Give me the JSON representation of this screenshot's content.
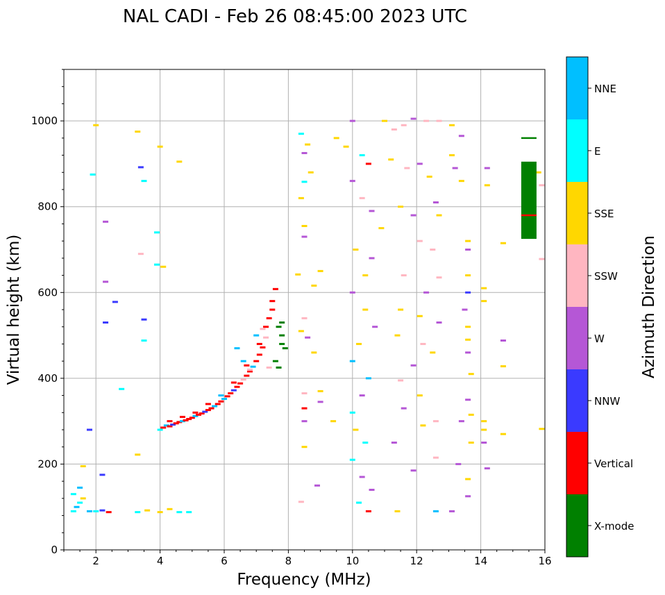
{
  "chart_data": {
    "type": "scatter",
    "title": "NAL CADI - Feb 26 08:45:00 2023 UTC",
    "xlabel": "Frequency (MHz)",
    "ylabel": "Virtual height (km)",
    "xlim": [
      1,
      16
    ],
    "ylim": [
      0,
      1120
    ],
    "xticks": [
      2,
      4,
      6,
      8,
      10,
      12,
      14,
      16
    ],
    "yticks": [
      0,
      200,
      400,
      600,
      800,
      1000
    ],
    "grid": true,
    "colorbar": {
      "label": "Azimuth Direction",
      "position": "right",
      "categories": [
        {
          "name": "X-mode",
          "color": "#008000"
        },
        {
          "name": "Vertical",
          "color": "#ff0000"
        },
        {
          "name": "NNW",
          "color": "#3a3aff"
        },
        {
          "name": "W",
          "color": "#b557d6"
        },
        {
          "name": "SSW",
          "color": "#ffb6c1"
        },
        {
          "name": "SSE",
          "color": "#ffd700"
        },
        {
          "name": "E",
          "color": "#00ffff"
        },
        {
          "name": "NNE",
          "color": "#00bfff"
        }
      ]
    },
    "notes": "Representative echo points (frequency MHz, virtual height km, direction). Main F-layer trace rises from ~290 km at 4 MHz to ~600 km near 7.4 MHz.",
    "points": [
      [
        4.0,
        280,
        "E"
      ],
      [
        4.1,
        285,
        "Vertical"
      ],
      [
        4.2,
        290,
        "NNE"
      ],
      [
        4.3,
        288,
        "Vertical"
      ],
      [
        4.4,
        292,
        "NNW"
      ],
      [
        4.5,
        295,
        "Vertical"
      ],
      [
        4.6,
        298,
        "Vertical"
      ],
      [
        4.7,
        300,
        "NNE"
      ],
      [
        4.8,
        302,
        "Vertical"
      ],
      [
        4.9,
        305,
        "Vertical"
      ],
      [
        5.0,
        308,
        "Vertical"
      ],
      [
        5.1,
        312,
        "NNE"
      ],
      [
        5.2,
        315,
        "Vertical"
      ],
      [
        5.3,
        318,
        "Vertical"
      ],
      [
        5.4,
        322,
        "NNW"
      ],
      [
        5.5,
        326,
        "Vertical"
      ],
      [
        5.6,
        330,
        "Vertical"
      ],
      [
        5.7,
        335,
        "NNE"
      ],
      [
        5.8,
        340,
        "Vertical"
      ],
      [
        5.9,
        346,
        "Vertical"
      ],
      [
        6.0,
        352,
        "NNE"
      ],
      [
        6.1,
        358,
        "Vertical"
      ],
      [
        6.2,
        365,
        "Vertical"
      ],
      [
        6.3,
        372,
        "NNW"
      ],
      [
        6.4,
        380,
        "Vertical"
      ],
      [
        6.5,
        388,
        "Vertical"
      ],
      [
        6.6,
        397,
        "SSW"
      ],
      [
        6.7,
        406,
        "Vertical"
      ],
      [
        6.8,
        416,
        "Vertical"
      ],
      [
        6.9,
        427,
        "NNE"
      ],
      [
        7.0,
        440,
        "Vertical"
      ],
      [
        7.1,
        455,
        "Vertical"
      ],
      [
        7.2,
        472,
        "Vertical"
      ],
      [
        7.3,
        495,
        "SSW"
      ],
      [
        7.4,
        540,
        "Vertical"
      ],
      [
        7.5,
        580,
        "Vertical"
      ],
      [
        7.6,
        608,
        "Vertical"
      ],
      [
        4.3,
        300,
        "Vertical"
      ],
      [
        4.7,
        310,
        "Vertical"
      ],
      [
        5.1,
        320,
        "Vertical"
      ],
      [
        5.5,
        340,
        "Vertical"
      ],
      [
        5.9,
        360,
        "NNE"
      ],
      [
        6.3,
        390,
        "Vertical"
      ],
      [
        6.7,
        430,
        "Vertical"
      ],
      [
        7.1,
        480,
        "Vertical"
      ],
      [
        7.3,
        520,
        "Vertical"
      ],
      [
        7.5,
        560,
        "Vertical"
      ],
      [
        6.4,
        470,
        "NNE"
      ],
      [
        6.6,
        440,
        "NNE"
      ],
      [
        6.8,
        420,
        "SSW"
      ],
      [
        7.0,
        500,
        "NNE"
      ],
      [
        7.2,
        515,
        "SSW"
      ],
      [
        7.4,
        425,
        "SSW"
      ],
      [
        7.7,
        520,
        "X-mode"
      ],
      [
        7.8,
        500,
        "X-mode"
      ],
      [
        7.8,
        480,
        "X-mode"
      ],
      [
        7.9,
        470,
        "X-mode"
      ],
      [
        7.6,
        440,
        "X-mode"
      ],
      [
        7.7,
        425,
        "X-mode"
      ],
      [
        7.8,
        530,
        "X-mode"
      ],
      [
        1.3,
        90,
        "E"
      ],
      [
        1.4,
        100,
        "NNE"
      ],
      [
        1.5,
        110,
        "E"
      ],
      [
        1.6,
        120,
        "SSE"
      ],
      [
        1.3,
        130,
        "E"
      ],
      [
        1.5,
        145,
        "NNE"
      ],
      [
        1.6,
        195,
        "SSE"
      ],
      [
        1.8,
        90,
        "NNE"
      ],
      [
        2.0,
        90,
        "E"
      ],
      [
        2.2,
        92,
        "NNW"
      ],
      [
        2.4,
        88,
        "Vertical"
      ],
      [
        3.3,
        88,
        "E"
      ],
      [
        3.6,
        92,
        "SSE"
      ],
      [
        4.0,
        88,
        "SSE"
      ],
      [
        4.3,
        95,
        "SSE"
      ],
      [
        4.6,
        88,
        "E"
      ],
      [
        4.9,
        88,
        "E"
      ],
      [
        1.8,
        280,
        "NNW"
      ],
      [
        2.2,
        175,
        "NNW"
      ],
      [
        2.3,
        530,
        "NNW"
      ],
      [
        2.3,
        625,
        "W"
      ],
      [
        2.3,
        765,
        "W"
      ],
      [
        2.6,
        578,
        "NNW"
      ],
      [
        2.8,
        375,
        "E"
      ],
      [
        1.9,
        875,
        "E"
      ],
      [
        2.0,
        990,
        "SSE"
      ],
      [
        3.3,
        975,
        "SSE"
      ],
      [
        3.5,
        860,
        "E"
      ],
      [
        4.0,
        940,
        "SSE"
      ],
      [
        4.6,
        905,
        "SSE"
      ],
      [
        3.4,
        690,
        "SSW"
      ],
      [
        3.9,
        740,
        "E"
      ],
      [
        3.9,
        665,
        "E"
      ],
      [
        4.1,
        660,
        "SSE"
      ],
      [
        3.5,
        488,
        "E"
      ],
      [
        3.5,
        537,
        "NNW"
      ],
      [
        3.4,
        892,
        "NNW"
      ],
      [
        3.3,
        222,
        "SSE"
      ],
      [
        8.4,
        970,
        "E"
      ],
      [
        8.6,
        945,
        "SSE"
      ],
      [
        8.5,
        925,
        "W"
      ],
      [
        8.7,
        880,
        "SSE"
      ],
      [
        8.5,
        858,
        "E"
      ],
      [
        8.4,
        820,
        "SSE"
      ],
      [
        8.5,
        755,
        "SSE"
      ],
      [
        8.5,
        730,
        "W"
      ],
      [
        8.3,
        642,
        "SSE"
      ],
      [
        8.8,
        616,
        "SSE"
      ],
      [
        9.0,
        650,
        "SSE"
      ],
      [
        8.5,
        540,
        "SSW"
      ],
      [
        8.4,
        510,
        "SSE"
      ],
      [
        8.6,
        495,
        "W"
      ],
      [
        8.8,
        460,
        "SSE"
      ],
      [
        8.5,
        365,
        "SSW"
      ],
      [
        8.5,
        330,
        "Vertical"
      ],
      [
        8.5,
        300,
        "W"
      ],
      [
        8.5,
        240,
        "SSE"
      ],
      [
        8.4,
        112,
        "SSW"
      ],
      [
        8.9,
        150,
        "W"
      ],
      [
        9.0,
        370,
        "SSE"
      ],
      [
        9.0,
        345,
        "W"
      ],
      [
        9.4,
        300,
        "SSE"
      ],
      [
        9.5,
        960,
        "SSE"
      ],
      [
        9.8,
        940,
        "SSE"
      ],
      [
        10.0,
        1000,
        "W"
      ],
      [
        10.3,
        920,
        "E"
      ],
      [
        10.5,
        900,
        "Vertical"
      ],
      [
        10.0,
        860,
        "W"
      ],
      [
        10.3,
        820,
        "SSW"
      ],
      [
        10.6,
        790,
        "W"
      ],
      [
        10.9,
        750,
        "SSE"
      ],
      [
        10.1,
        700,
        "SSE"
      ],
      [
        10.6,
        680,
        "W"
      ],
      [
        10.4,
        640,
        "SSE"
      ],
      [
        10.0,
        600,
        "W"
      ],
      [
        10.4,
        560,
        "SSE"
      ],
      [
        10.7,
        520,
        "W"
      ],
      [
        10.2,
        480,
        "SSE"
      ],
      [
        10.0,
        440,
        "NNE"
      ],
      [
        10.5,
        400,
        "NNE"
      ],
      [
        10.3,
        360,
        "W"
      ],
      [
        10.0,
        320,
        "E"
      ],
      [
        10.1,
        280,
        "SSE"
      ],
      [
        10.4,
        250,
        "E"
      ],
      [
        10.0,
        210,
        "E"
      ],
      [
        10.3,
        170,
        "W"
      ],
      [
        10.6,
        140,
        "W"
      ],
      [
        10.2,
        110,
        "E"
      ],
      [
        10.5,
        90,
        "Vertical"
      ],
      [
        11.0,
        1000,
        "SSE"
      ],
      [
        11.3,
        980,
        "SSW"
      ],
      [
        11.6,
        990,
        "SSW"
      ],
      [
        11.9,
        1005,
        "W"
      ],
      [
        12.3,
        1000,
        "SSW"
      ],
      [
        12.7,
        1000,
        "SSW"
      ],
      [
        13.1,
        990,
        "SSE"
      ],
      [
        13.4,
        965,
        "W"
      ],
      [
        11.2,
        910,
        "SSE"
      ],
      [
        11.7,
        890,
        "SSW"
      ],
      [
        12.1,
        900,
        "W"
      ],
      [
        12.4,
        870,
        "SSE"
      ],
      [
        12.6,
        810,
        "W"
      ],
      [
        12.7,
        780,
        "SSE"
      ],
      [
        11.5,
        800,
        "SSE"
      ],
      [
        11.9,
        780,
        "W"
      ],
      [
        12.1,
        720,
        "SSW"
      ],
      [
        12.5,
        700,
        "SSW"
      ],
      [
        11.6,
        640,
        "SSW"
      ],
      [
        12.7,
        635,
        "SSW"
      ],
      [
        12.3,
        600,
        "W"
      ],
      [
        11.5,
        560,
        "SSE"
      ],
      [
        12.1,
        545,
        "SSE"
      ],
      [
        12.7,
        530,
        "W"
      ],
      [
        11.4,
        500,
        "SSE"
      ],
      [
        12.2,
        480,
        "SSW"
      ],
      [
        11.9,
        430,
        "W"
      ],
      [
        12.5,
        460,
        "SSE"
      ],
      [
        11.5,
        395,
        "SSW"
      ],
      [
        12.1,
        360,
        "SSE"
      ],
      [
        11.6,
        330,
        "W"
      ],
      [
        12.6,
        300,
        "SSW"
      ],
      [
        12.2,
        290,
        "SSE"
      ],
      [
        11.3,
        250,
        "W"
      ],
      [
        12.6,
        215,
        "SSW"
      ],
      [
        11.9,
        185,
        "W"
      ],
      [
        12.6,
        90,
        "NNE"
      ],
      [
        11.4,
        90,
        "SSE"
      ],
      [
        13.1,
        920,
        "SSE"
      ],
      [
        13.2,
        890,
        "W"
      ],
      [
        13.4,
        860,
        "SSE"
      ],
      [
        13.6,
        720,
        "SSE"
      ],
      [
        13.6,
        700,
        "W"
      ],
      [
        13.6,
        640,
        "SSE"
      ],
      [
        13.6,
        600,
        "NNW"
      ],
      [
        13.5,
        560,
        "W"
      ],
      [
        13.6,
        520,
        "SSE"
      ],
      [
        13.6,
        490,
        "SSE"
      ],
      [
        13.6,
        460,
        "W"
      ],
      [
        13.7,
        410,
        "SSE"
      ],
      [
        13.6,
        350,
        "W"
      ],
      [
        13.7,
        315,
        "SSE"
      ],
      [
        13.4,
        300,
        "W"
      ],
      [
        13.7,
        250,
        "SSE"
      ],
      [
        13.3,
        200,
        "W"
      ],
      [
        13.6,
        165,
        "SSE"
      ],
      [
        13.6,
        125,
        "W"
      ],
      [
        13.1,
        90,
        "W"
      ],
      [
        14.2,
        890,
        "W"
      ],
      [
        14.2,
        850,
        "SSE"
      ],
      [
        14.7,
        715,
        "SSE"
      ],
      [
        14.1,
        610,
        "SSE"
      ],
      [
        14.1,
        580,
        "SSE"
      ],
      [
        14.7,
        488,
        "W"
      ],
      [
        14.7,
        428,
        "SSE"
      ],
      [
        14.1,
        300,
        "SSE"
      ],
      [
        14.1,
        280,
        "SSE"
      ],
      [
        14.7,
        270,
        "SSE"
      ],
      [
        14.1,
        250,
        "W"
      ],
      [
        14.2,
        190,
        "W"
      ],
      [
        15.8,
        880,
        "SSE"
      ],
      [
        15.9,
        850,
        "SSW"
      ],
      [
        15.9,
        678,
        "SSW"
      ],
      [
        15.9,
        282,
        "SSE"
      ]
    ],
    "segments": [
      {
        "x": 15.5,
        "y_from": 725,
        "y_to": 905,
        "direction": "X-mode"
      },
      {
        "x": 15.5,
        "y_from": 778,
        "y_to": 782,
        "direction": "Vertical"
      },
      {
        "x": 15.5,
        "y_from": 958,
        "y_to": 962,
        "direction": "X-mode"
      }
    ]
  }
}
